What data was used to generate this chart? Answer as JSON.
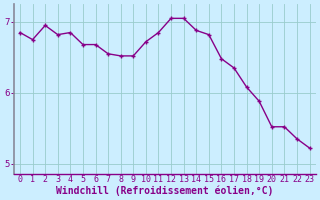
{
  "x": [
    0,
    1,
    2,
    3,
    4,
    5,
    6,
    7,
    8,
    9,
    10,
    11,
    12,
    13,
    14,
    15,
    16,
    17,
    18,
    19,
    20,
    21,
    22,
    23
  ],
  "y": [
    6.85,
    6.75,
    6.95,
    6.82,
    6.85,
    6.68,
    6.68,
    6.55,
    6.52,
    6.52,
    6.72,
    6.85,
    7.05,
    7.05,
    6.88,
    6.82,
    6.48,
    6.35,
    6.08,
    5.88,
    5.52,
    5.52,
    5.35,
    5.22
  ],
  "line_color": "#880088",
  "marker": "+",
  "bg_color": "#cceeff",
  "grid_color": "#99cccc",
  "spine_color": "#888899",
  "xlabel": "Windchill (Refroidissement éolien,°C)",
  "xlim": [
    -0.5,
    23.5
  ],
  "ylim": [
    4.85,
    7.25
  ],
  "yticks": [
    5,
    6,
    7
  ],
  "tick_fontsize": 6,
  "label_fontsize": 7,
  "linewidth": 1.0,
  "markersize": 3.5
}
